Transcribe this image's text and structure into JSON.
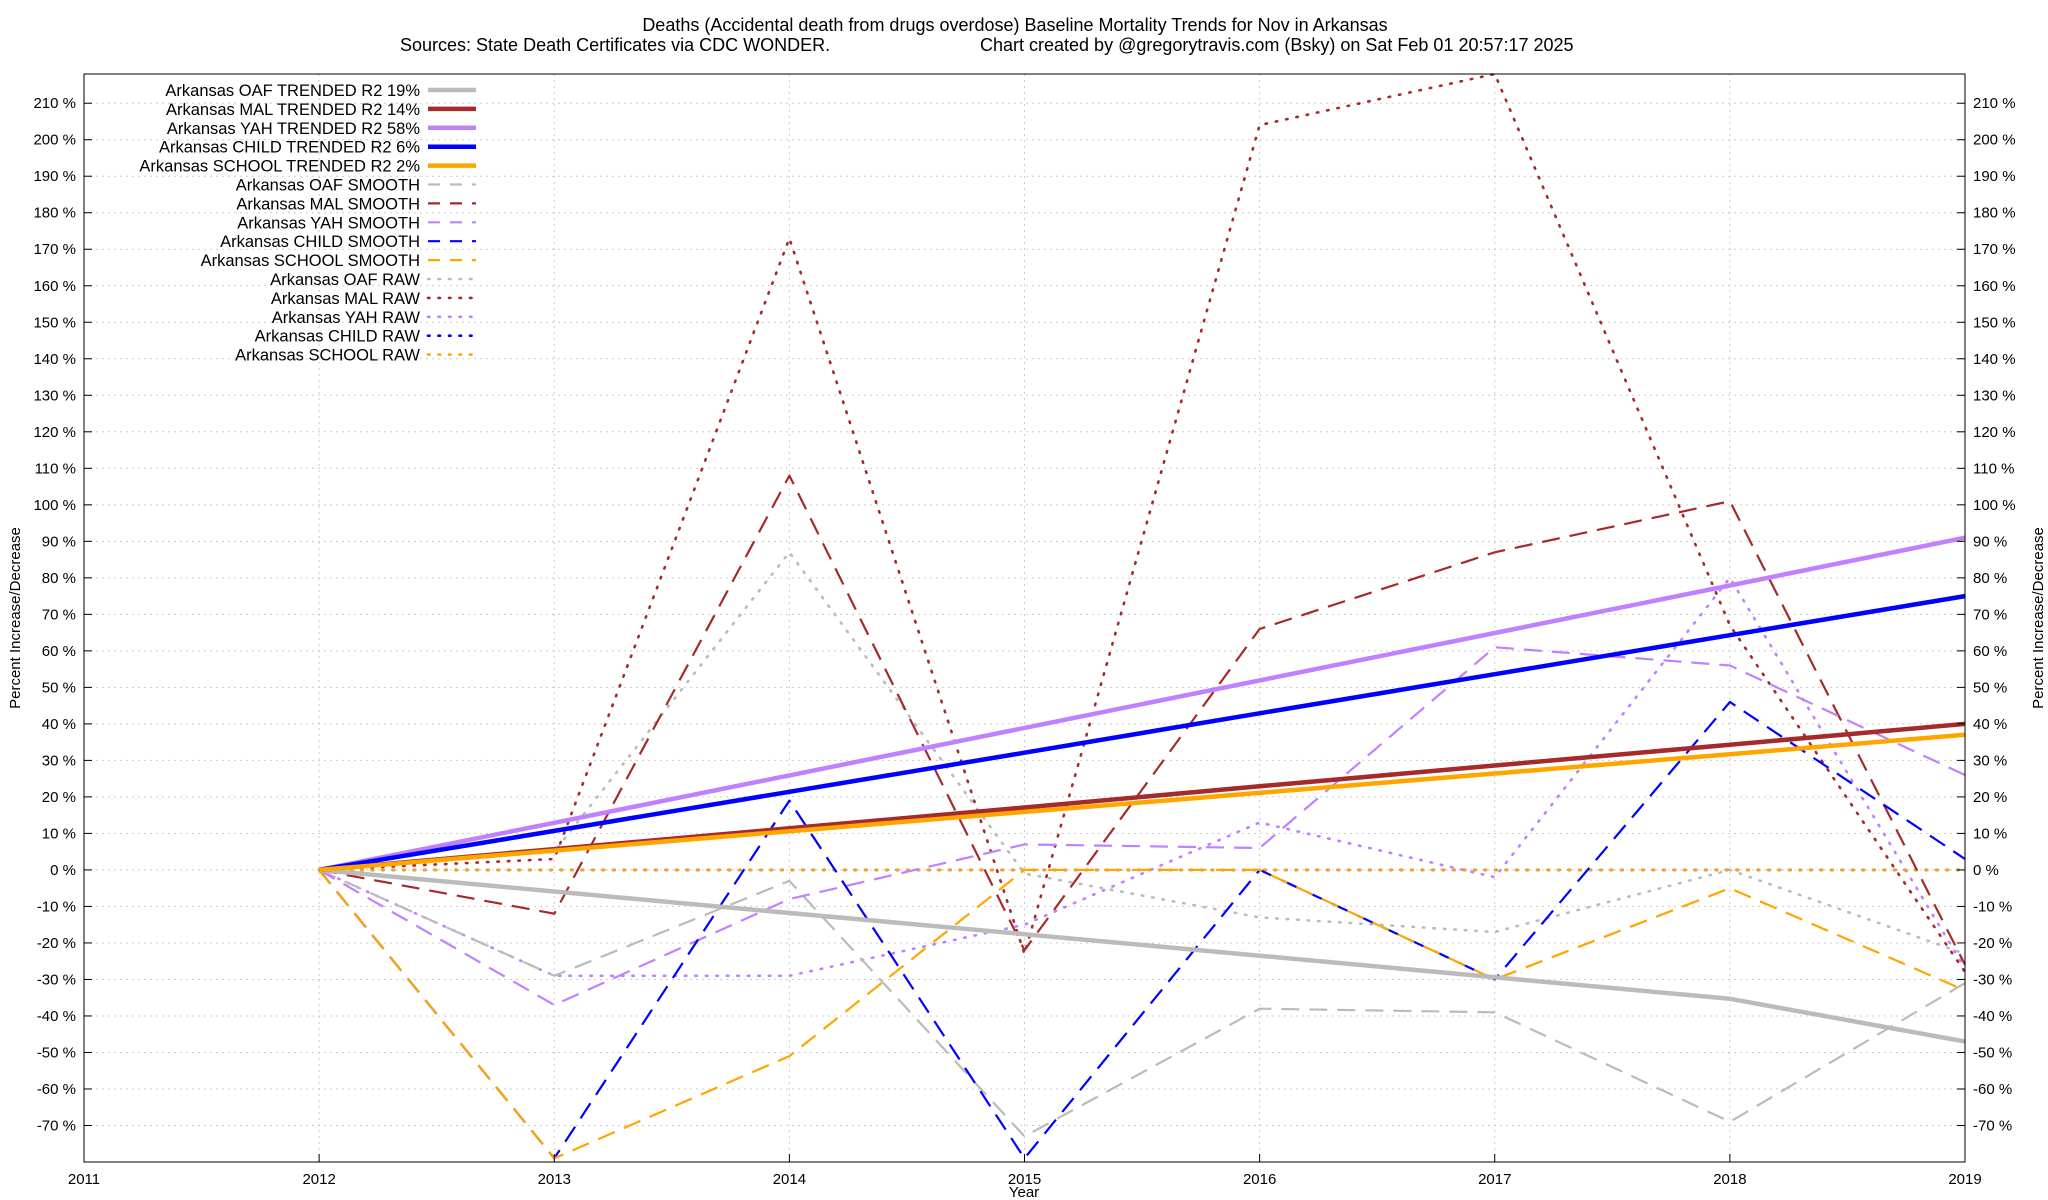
{
  "chart_data": {
    "type": "line",
    "title": "Deaths (Accidental death from drugs overdose)  Baseline Mortality Trends for Nov in Arkansas",
    "subtitle_left": "Sources: State Death Certificates via CDC WONDER.",
    "subtitle_right": "Chart created by @gregorytravis.com (Bsky) on Sat Feb 01 20:57:17 2025",
    "xlabel": "Year",
    "ylabel_left": "Percent Increase/Decrease",
    "ylabel_right": "Percent Increase/Decrease",
    "xlim": [
      2011,
      2019
    ],
    "ylim": [
      -80,
      218
    ],
    "x_ticks": [
      2011,
      2012,
      2013,
      2014,
      2015,
      2016,
      2017,
      2018,
      2019
    ],
    "x_tick_labels": [
      "2011",
      "2012",
      "2013",
      "2014",
      "2015",
      "2016",
      "2017",
      "2018",
      "2019"
    ],
    "y_ticks": [
      -70,
      -60,
      -50,
      -40,
      -30,
      -20,
      -10,
      0,
      10,
      20,
      30,
      40,
      50,
      60,
      70,
      80,
      90,
      100,
      110,
      120,
      130,
      140,
      150,
      160,
      170,
      180,
      190,
      200,
      210
    ],
    "y_tick_labels": [
      "-70 %",
      "-60 %",
      "-50 %",
      "-40 %",
      "-30 %",
      "-20 %",
      "-10 %",
      "0 %",
      "10 %",
      "20 %",
      "30 %",
      "40 %",
      "50 %",
      "60 %",
      "70 %",
      "80 %",
      "90 %",
      "100 %",
      "110 %",
      "120 %",
      "130 %",
      "140 %",
      "150 %",
      "160 %",
      "170 %",
      "180 %",
      "190 %",
      "200 %",
      "210 %"
    ],
    "grid": true,
    "legend_position": "top-left",
    "x": [
      2012,
      2013,
      2014,
      2015,
      2016,
      2017,
      2018,
      2019
    ],
    "series": [
      {
        "name": "Arkansas OAF TRENDED R2  19%",
        "style": "trend",
        "color": "#bbbbbb",
        "values": [
          0,
          -5.9,
          -11.8,
          -17.6,
          -23.5,
          -29.4,
          -35.3,
          -47.0
        ]
      },
      {
        "name": "Arkansas MAL TRENDED R2  14%",
        "style": "trend",
        "color": "#a52a2a",
        "values": [
          0,
          5.7,
          11.4,
          17.1,
          22.9,
          28.6,
          34.3,
          40.0
        ]
      },
      {
        "name": "Arkansas YAH TRENDED R2  58%",
        "style": "trend",
        "color": "#c080ff",
        "values": [
          0,
          12.9,
          25.9,
          38.9,
          51.9,
          64.9,
          77.9,
          91.0
        ]
      },
      {
        "name": "Arkansas CHILD TRENDED R2   6%",
        "style": "trend",
        "color": "#0000ff",
        "values": [
          0,
          10.7,
          21.4,
          32.1,
          42.9,
          53.6,
          64.3,
          75.0
        ]
      },
      {
        "name": "Arkansas SCHOOL TRENDED R2   2%",
        "style": "trend",
        "color": "#ffa500",
        "values": [
          0,
          5.3,
          10.6,
          15.9,
          21.1,
          26.4,
          31.7,
          37.0
        ]
      },
      {
        "name": "Arkansas OAF SMOOTH",
        "style": "smooth",
        "color": "#bbbbbb",
        "values": [
          0,
          -29,
          -3,
          -73,
          -38,
          -39,
          -69,
          -31
        ]
      },
      {
        "name": "Arkansas MAL SMOOTH",
        "style": "smooth",
        "color": "#a52a2a",
        "values": [
          0,
          -12,
          108,
          -22,
          66,
          87,
          101,
          -26
        ]
      },
      {
        "name": "Arkansas YAH SMOOTH",
        "style": "smooth",
        "color": "#c080ff",
        "values": [
          0,
          -37,
          -8,
          7,
          6,
          61,
          56,
          26
        ]
      },
      {
        "name": "Arkansas CHILD SMOOTH",
        "style": "smooth",
        "color": "#0000ff",
        "values": [
          0,
          -79,
          19,
          -79,
          0,
          -30,
          46,
          3
        ]
      },
      {
        "name": "Arkansas SCHOOL SMOOTH",
        "style": "smooth",
        "color": "#ffa500",
        "values": [
          0,
          -79,
          -51,
          0,
          0,
          -30,
          -5,
          -33
        ]
      },
      {
        "name": "Arkansas OAF RAW",
        "style": "raw",
        "color": "#bbbbbb",
        "values": [
          0,
          5,
          87,
          -1,
          -13,
          -17,
          0,
          -23
        ]
      },
      {
        "name": "Arkansas MAL RAW",
        "style": "raw",
        "color": "#a52a2a",
        "values": [
          0,
          3,
          173,
          -23,
          204,
          218,
          67,
          -28
        ]
      },
      {
        "name": "Arkansas YAH RAW",
        "style": "raw",
        "color": "#c080ff",
        "values": [
          0,
          -29,
          -29,
          -15,
          13,
          -2,
          80,
          -27
        ]
      },
      {
        "name": "Arkansas CHILD RAW",
        "style": "raw",
        "color": "#0000ff",
        "values": [
          0,
          0,
          0,
          0,
          0,
          0,
          0,
          0
        ]
      },
      {
        "name": "Arkansas SCHOOL RAW",
        "style": "raw",
        "color": "#ffa500",
        "values": [
          0,
          0,
          0,
          0,
          0,
          0,
          0,
          0
        ]
      }
    ]
  }
}
